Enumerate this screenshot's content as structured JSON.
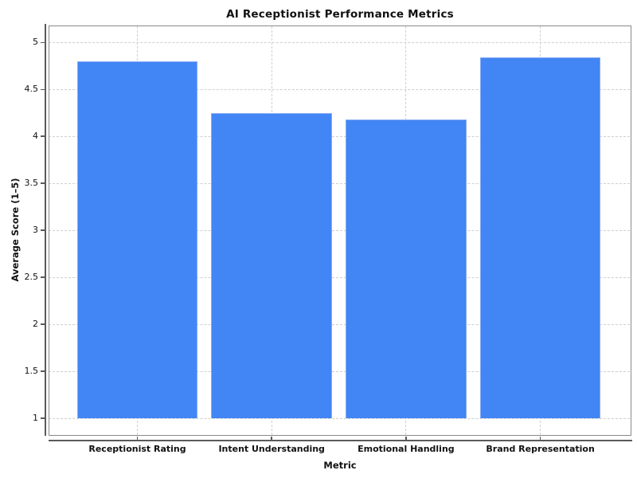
{
  "chart_data": {
    "type": "bar",
    "title": "AI Receptionist Performance Metrics",
    "xlabel": "Metric",
    "ylabel": "Average Score (1–5)",
    "categories": [
      "Receptionist Rating",
      "Intent Understanding",
      "Emotional Handling",
      "Brand Representation"
    ],
    "values": [
      4.8,
      4.25,
      4.18,
      4.84
    ],
    "bar_baseline": 1,
    "y_ticks": [
      1,
      1.5,
      2,
      2.5,
      3,
      3.5,
      4,
      4.5,
      5
    ],
    "y_tick_labels": [
      "1",
      "1.5",
      "2",
      "2.5",
      "3",
      "3.5",
      "4",
      "4.5",
      "5"
    ],
    "ylim": [
      0.82,
      5.18
    ],
    "grid": "dashed both axes",
    "legend_position": "none",
    "colors": {
      "bar_fill": "#4285F4",
      "bar_edge": "#85ACF7",
      "grid": "#CFCFCF",
      "axis_line": "#5A5A5A",
      "frame": "#8A8A8A",
      "text": "#111111",
      "background": "#FFFFFF"
    }
  }
}
